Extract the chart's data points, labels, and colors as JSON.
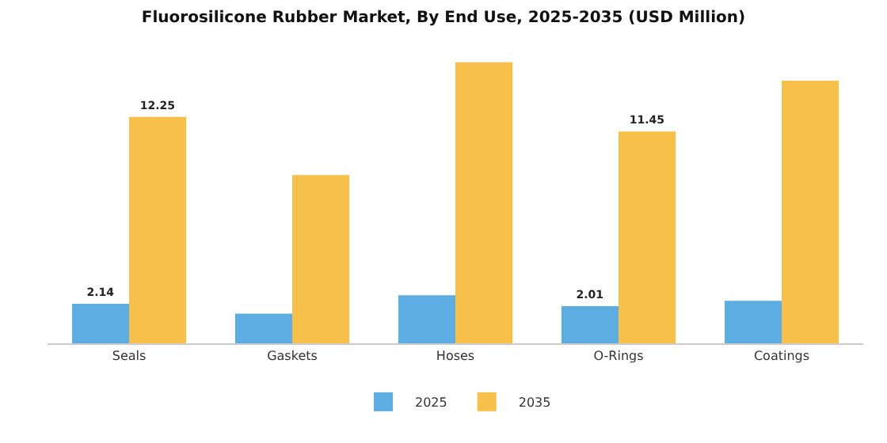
{
  "chart_data": {
    "type": "bar",
    "title": "Fluorosilicone Rubber Market, By End Use, 2025-2035 (USD Million)",
    "categories": [
      "Seals",
      "Gaskets",
      "Hoses",
      "O-Rings",
      "Coatings"
    ],
    "series": [
      {
        "name": "2025",
        "color": "#5dade2",
        "values": [
          2.14,
          1.6,
          2.6,
          2.01,
          2.3
        ],
        "value_labels": [
          "2.14",
          null,
          null,
          "2.01",
          null
        ]
      },
      {
        "name": "2035",
        "color": "#f7c04a",
        "values": [
          12.25,
          9.1,
          15.2,
          11.45,
          14.2
        ],
        "value_labels": [
          "12.25",
          null,
          null,
          "11.45",
          null
        ]
      }
    ],
    "tick_labels": "x",
    "grid": false,
    "legend": "bottom"
  }
}
